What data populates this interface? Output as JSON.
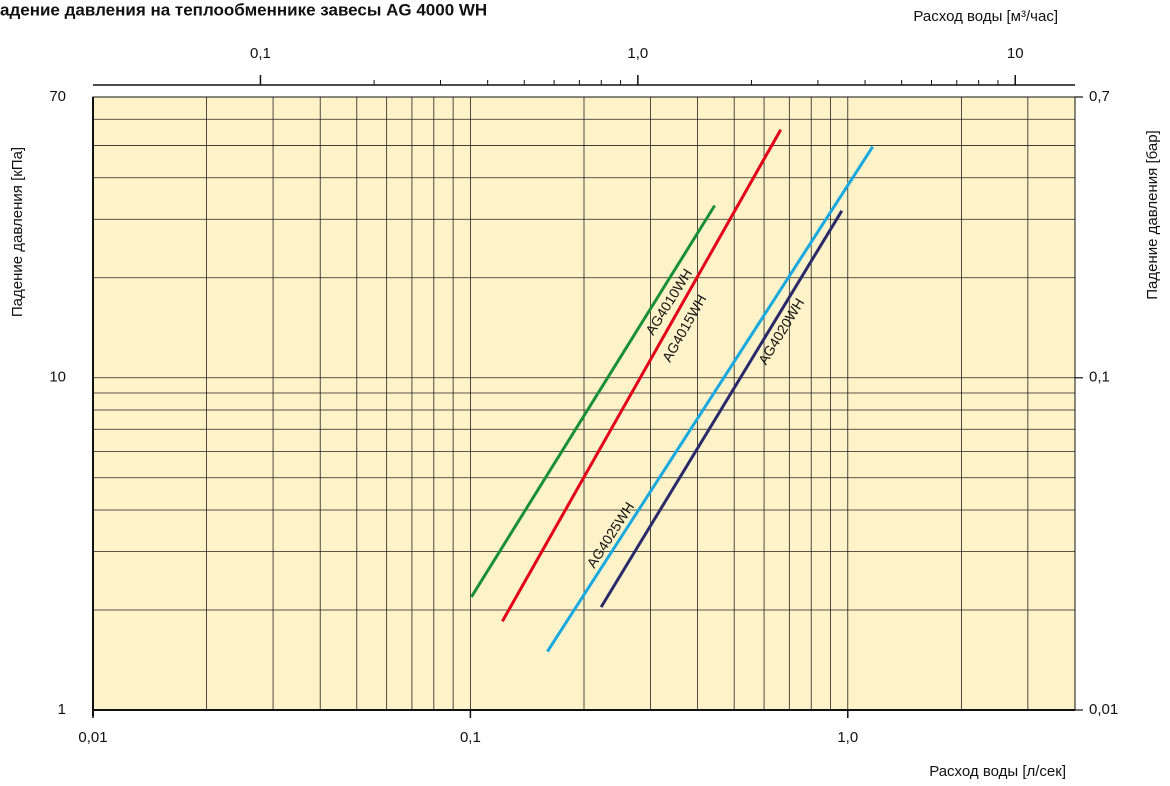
{
  "chart_data": {
    "type": "line",
    "title": "адение давления на теплообменнике завесы AG 4000 WH",
    "xlabel": "Расход воды [л/сек]",
    "x2label": "Расход воды [м³/час]",
    "ylabel": "Падение давления [кПа]",
    "y2label": "Падение давления [бар]",
    "xlog": true,
    "ylog": true,
    "grid": true,
    "background": "#fdf2c8",
    "xlim": [
      0.01,
      4
    ],
    "xticks": [
      {
        "value": 0.01,
        "label": "0,01"
      },
      {
        "value": 0.1,
        "label": "0,1"
      },
      {
        "value": 1,
        "label": "1,0"
      }
    ],
    "xminor": [
      0.02,
      0.03,
      0.04,
      0.05,
      0.06,
      0.07,
      0.08,
      0.09,
      0.2,
      0.3,
      0.4,
      0.5,
      0.6,
      0.7,
      0.8,
      0.9,
      2,
      3
    ],
    "x2lim": [
      0.036,
      14.4
    ],
    "x2ticks": [
      {
        "value": 0.1,
        "label": "0,1"
      },
      {
        "value": 1,
        "label": "1,0"
      },
      10
    ],
    "x2minor": [
      0.2,
      0.3,
      0.4,
      0.5,
      0.6,
      0.7,
      0.8,
      0.9,
      2,
      3,
      4,
      5,
      6,
      7,
      8,
      9
    ],
    "ylim": [
      1,
      70
    ],
    "yticks": [
      1,
      10,
      70
    ],
    "yminor": [
      2,
      3,
      4,
      5,
      6,
      7,
      8,
      9,
      20,
      30,
      40,
      50,
      60
    ],
    "y2lim": [
      0.01,
      0.7
    ],
    "y2ticks": [
      {
        "value": 0.01,
        "label": "0,01"
      },
      {
        "value": 0.1,
        "label": "0,1"
      },
      {
        "value": 0.7,
        "label": "0,7"
      }
    ],
    "series": [
      {
        "name": "AG4010WH",
        "color": "#1a8f3a",
        "x": [
          0.1006,
          0.444
        ],
        "values": [
          2.19,
          33.0
        ]
      },
      {
        "name": "AG4015WH",
        "color": "#e3001b",
        "x": [
          0.1216,
          0.664
        ],
        "values": [
          1.85,
          55.8
        ]
      },
      {
        "name": "AG4025WH",
        "color": "#1aa8e0",
        "x": [
          0.16,
          1.164
        ],
        "values": [
          1.5,
          49.6
        ]
      },
      {
        "name": "AG4020WH",
        "color": "#2a2a6a",
        "x": [
          0.222,
          0.964
        ],
        "values": [
          2.04,
          31.8
        ]
      }
    ]
  }
}
